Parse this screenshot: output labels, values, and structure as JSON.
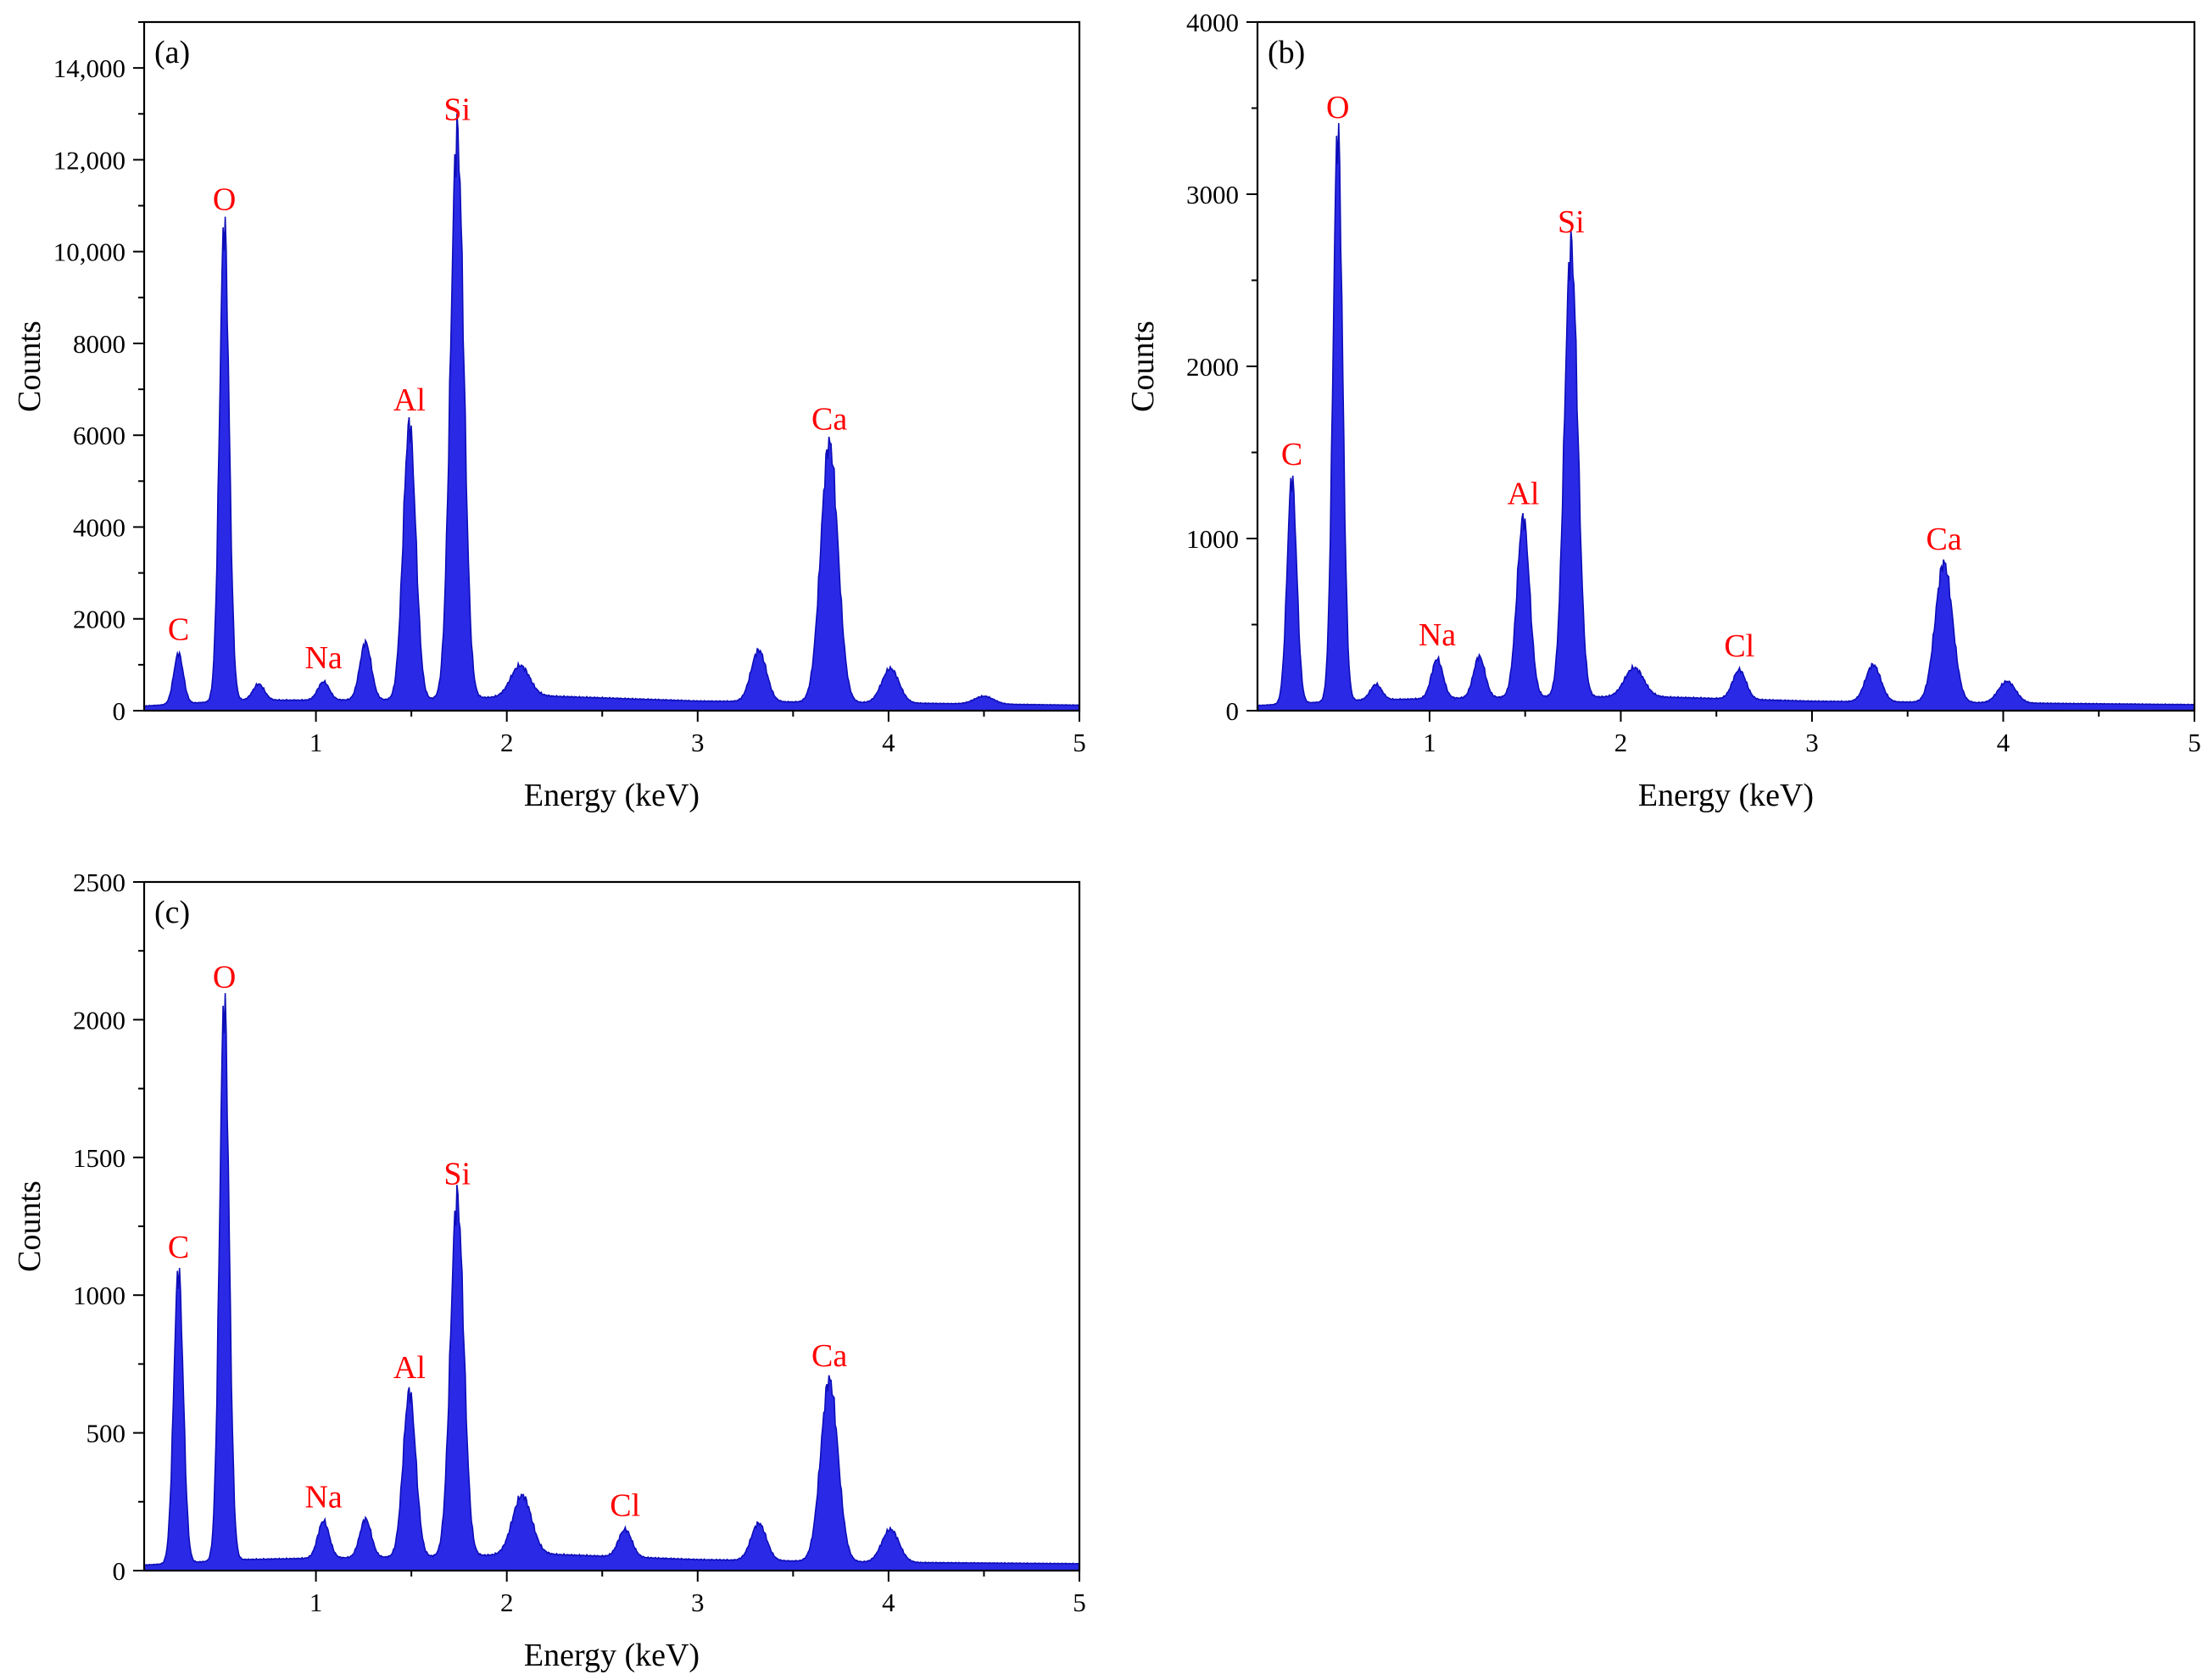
{
  "figure": {
    "colors": {
      "spectrum": "#2a2ae6",
      "spectrum_stroke": "#0d0db8",
      "peak_labels": "#ff0000",
      "axes": "#000000"
    }
  },
  "chart_data": [
    {
      "type": "area",
      "panel_label": "(a)",
      "xlabel": "Energy (keV)",
      "ylabel": "Counts",
      "xlim": [
        0.1,
        5
      ],
      "ylim": [
        0,
        15000
      ],
      "xticks": [
        1,
        2,
        3,
        4,
        5
      ],
      "yticks": [
        0,
        2000,
        4000,
        6000,
        8000,
        10000,
        12000,
        14000
      ],
      "ytick_labels": [
        "0",
        "2000",
        "4000",
        "6000",
        "8000",
        "10,000",
        "12,000",
        "14,000"
      ],
      "baseline": [
        [
          0.1,
          100
        ],
        [
          0.6,
          230
        ],
        [
          1.0,
          230
        ],
        [
          1.5,
          240
        ],
        [
          2.2,
          320
        ],
        [
          3.0,
          210
        ],
        [
          4.0,
          170
        ],
        [
          5.0,
          120
        ]
      ],
      "peaks": [
        {
          "label": "C",
          "energy": 0.28,
          "counts": 1100,
          "width": 0.025,
          "labeled": true
        },
        {
          "label": "O",
          "energy": 0.52,
          "counts": 10400,
          "width": 0.025,
          "labeled": true
        },
        {
          "label": "",
          "energy": 0.7,
          "counts": 350,
          "width": 0.03,
          "labeled": false
        },
        {
          "label": "Na",
          "energy": 1.04,
          "counts": 400,
          "width": 0.03,
          "labeled": true
        },
        {
          "label": "",
          "energy": 1.26,
          "counts": 1250,
          "width": 0.03,
          "labeled": false
        },
        {
          "label": "Al",
          "energy": 1.49,
          "counts": 6000,
          "width": 0.033,
          "labeled": true
        },
        {
          "label": "Si",
          "energy": 1.74,
          "counts": 12300,
          "width": 0.035,
          "labeled": true
        },
        {
          "label": "",
          "energy": 2.07,
          "counts": 680,
          "width": 0.05,
          "labeled": false
        },
        {
          "label": "",
          "energy": 3.32,
          "counts": 1120,
          "width": 0.04,
          "labeled": false
        },
        {
          "label": "Ca",
          "energy": 3.69,
          "counts": 5650,
          "width": 0.045,
          "labeled": true
        },
        {
          "label": "",
          "energy": 4.01,
          "counts": 750,
          "width": 0.045,
          "labeled": false
        },
        {
          "label": "",
          "energy": 4.5,
          "counts": 170,
          "width": 0.05,
          "labeled": false
        }
      ]
    },
    {
      "type": "area",
      "panel_label": "(b)",
      "xlabel": "Energy (keV)",
      "ylabel": "Counts",
      "xlim": [
        0.1,
        5
      ],
      "ylim": [
        0,
        4000
      ],
      "xticks": [
        1,
        2,
        3,
        4,
        5
      ],
      "yticks": [
        0,
        1000,
        2000,
        3000,
        4000
      ],
      "ytick_labels": [
        "0",
        "1000",
        "2000",
        "3000",
        "4000"
      ],
      "baseline": [
        [
          0.1,
          30
        ],
        [
          0.6,
          60
        ],
        [
          1.0,
          70
        ],
        [
          1.5,
          80
        ],
        [
          2.2,
          80
        ],
        [
          3.0,
          55
        ],
        [
          4.0,
          45
        ],
        [
          5.0,
          35
        ]
      ],
      "peaks": [
        {
          "label": "C",
          "energy": 0.28,
          "counts": 1310,
          "width": 0.025,
          "labeled": true
        },
        {
          "label": "O",
          "energy": 0.52,
          "counts": 3310,
          "width": 0.025,
          "labeled": true
        },
        {
          "label": "",
          "energy": 0.72,
          "counts": 90,
          "width": 0.03,
          "labeled": false
        },
        {
          "label": "Na",
          "energy": 1.04,
          "counts": 230,
          "width": 0.03,
          "labeled": true
        },
        {
          "label": "",
          "energy": 1.26,
          "counts": 240,
          "width": 0.03,
          "labeled": false
        },
        {
          "label": "Al",
          "energy": 1.49,
          "counts": 1040,
          "width": 0.033,
          "labeled": true
        },
        {
          "label": "Si",
          "energy": 1.74,
          "counts": 2620,
          "width": 0.035,
          "labeled": true
        },
        {
          "label": "",
          "energy": 2.07,
          "counts": 170,
          "width": 0.05,
          "labeled": false
        },
        {
          "label": "Cl",
          "energy": 2.62,
          "counts": 170,
          "width": 0.035,
          "labeled": true
        },
        {
          "label": "",
          "energy": 3.32,
          "counts": 215,
          "width": 0.04,
          "labeled": false
        },
        {
          "label": "Ca",
          "energy": 3.69,
          "counts": 810,
          "width": 0.045,
          "labeled": true
        },
        {
          "label": "",
          "energy": 4.02,
          "counts": 125,
          "width": 0.045,
          "labeled": false
        }
      ]
    },
    {
      "type": "area",
      "panel_label": "(c)",
      "xlabel": "Energy (keV)",
      "ylabel": "Counts",
      "xlim": [
        0.1,
        5
      ],
      "ylim": [
        0,
        2500
      ],
      "xticks": [
        1,
        2,
        3,
        4,
        5
      ],
      "yticks": [
        0,
        500,
        1000,
        1500,
        2000,
        2500
      ],
      "ytick_labels": [
        "0",
        "500",
        "1000",
        "1500",
        "2000",
        "2500"
      ],
      "baseline": [
        [
          0.1,
          20
        ],
        [
          0.6,
          40
        ],
        [
          1.0,
          45
        ],
        [
          1.5,
          50
        ],
        [
          2.2,
          60
        ],
        [
          3.0,
          40
        ],
        [
          4.0,
          30
        ],
        [
          5.0,
          25
        ]
      ],
      "peaks": [
        {
          "label": "C",
          "energy": 0.28,
          "counts": 1060,
          "width": 0.025,
          "labeled": true
        },
        {
          "label": "O",
          "energy": 0.52,
          "counts": 2030,
          "width": 0.025,
          "labeled": true
        },
        {
          "label": "Na",
          "energy": 1.04,
          "counts": 135,
          "width": 0.03,
          "labeled": true
        },
        {
          "label": "",
          "energy": 1.26,
          "counts": 140,
          "width": 0.03,
          "labeled": false
        },
        {
          "label": "Al",
          "energy": 1.49,
          "counts": 600,
          "width": 0.033,
          "labeled": true
        },
        {
          "label": "Si",
          "energy": 1.74,
          "counts": 1300,
          "width": 0.035,
          "labeled": true
        },
        {
          "label": "",
          "energy": 2.08,
          "counts": 215,
          "width": 0.05,
          "labeled": false
        },
        {
          "label": "Cl",
          "energy": 2.62,
          "counts": 100,
          "width": 0.035,
          "labeled": true
        },
        {
          "label": "",
          "energy": 3.32,
          "counts": 135,
          "width": 0.04,
          "labeled": false
        },
        {
          "label": "Ca",
          "energy": 3.69,
          "counts": 660,
          "width": 0.045,
          "labeled": true
        },
        {
          "label": "",
          "energy": 4.01,
          "counts": 120,
          "width": 0.045,
          "labeled": false
        }
      ]
    }
  ]
}
